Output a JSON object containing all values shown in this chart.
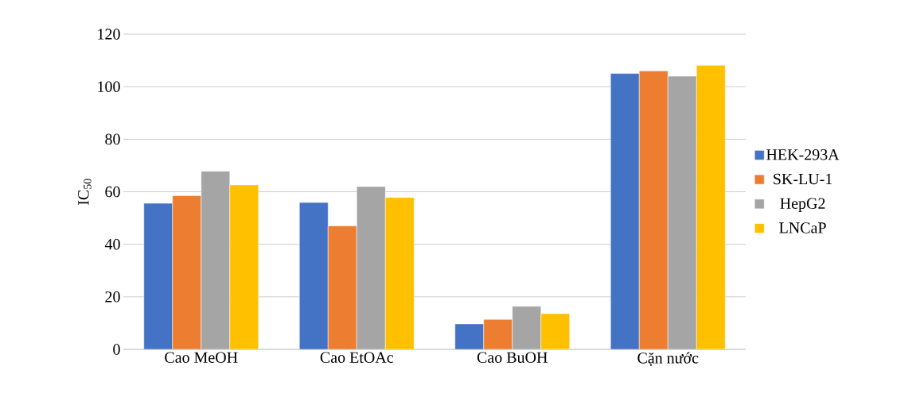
{
  "chart_data": {
    "type": "bar",
    "ylabel": "IC$_{50}$",
    "categories": [
      "Cao MeOH",
      "Cao EtOAc",
      "Cao BuOH",
      "Cặn nước"
    ],
    "series": [
      {
        "name": "HEK-293A",
        "color": "#4472c4",
        "values": [
          55.6,
          55.9,
          9.7,
          105.0
        ]
      },
      {
        "name": "SK-LU-1",
        "color": "#ed7d31",
        "values": [
          58.5,
          47.0,
          11.4,
          106.0
        ]
      },
      {
        "name": "HepG2",
        "color": "#a5a5a5",
        "values": [
          67.8,
          62.0,
          16.4,
          104.0
        ]
      },
      {
        "name": "LNCaP",
        "color": "#ffc000",
        "values": [
          62.6,
          57.8,
          13.6,
          108.1
        ]
      }
    ],
    "ylim": [
      0,
      120
    ],
    "yticks": [
      0,
      20,
      40,
      60,
      80,
      100,
      120
    ],
    "grid": "y",
    "legend": "right"
  }
}
